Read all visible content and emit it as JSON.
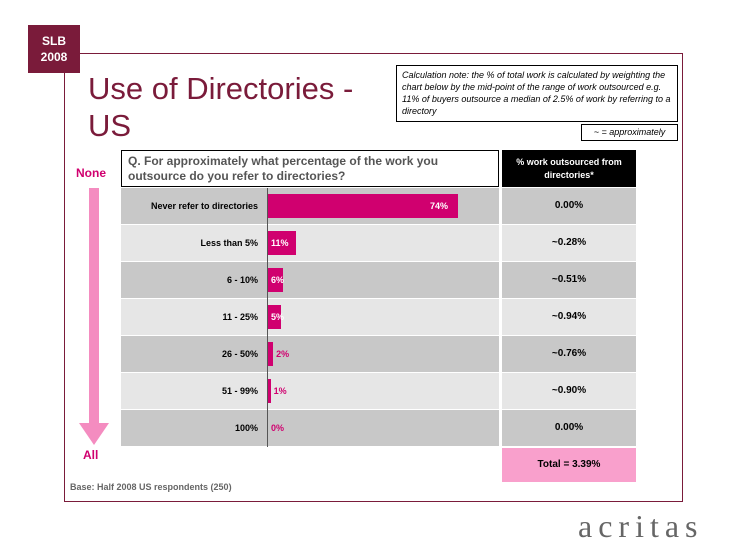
{
  "badge": {
    "line1": "SLB",
    "line2": "2008"
  },
  "title": "Use of Directories - US",
  "note": "Calculation note: the % of total work is calculated by weighting the chart below by the mid-point of the range of work outsourced e.g. 11% of buyers outsource a median of 2.5% of work by referring to a directory",
  "approx_note": "~ = approximately",
  "question": "Q. For approximately what percentage of the work you outsource do you refer to directories?",
  "pct_header": "% work outsourced from directories*",
  "arrow": {
    "top_label": "None",
    "bottom_label": "All",
    "color": "#f48cc0"
  },
  "total_label": "Total = 3.39%",
  "base": "Base: Half 2008 US respondents (250)",
  "logo": "acritas",
  "colors": {
    "bar": "#d0006f",
    "accent": "#7a1b3a"
  },
  "chart_data": {
    "type": "bar",
    "orientation": "horizontal",
    "categories": [
      "Never refer to directories",
      "Less than 5%",
      "6 - 10%",
      "11 - 25%",
      "26 - 50%",
      "51 - 99%",
      "100%"
    ],
    "values": [
      74,
      11,
      6,
      5,
      2,
      1,
      0
    ],
    "value_labels": [
      "74%",
      "11%",
      "6%",
      "5%",
      "2%",
      "1%",
      "0%"
    ],
    "pct_work": [
      "0.00%",
      "~0.28%",
      "~0.51%",
      "~0.94%",
      "~0.76%",
      "~0.90%",
      "0.00%"
    ],
    "xlim": [
      0,
      100
    ]
  }
}
